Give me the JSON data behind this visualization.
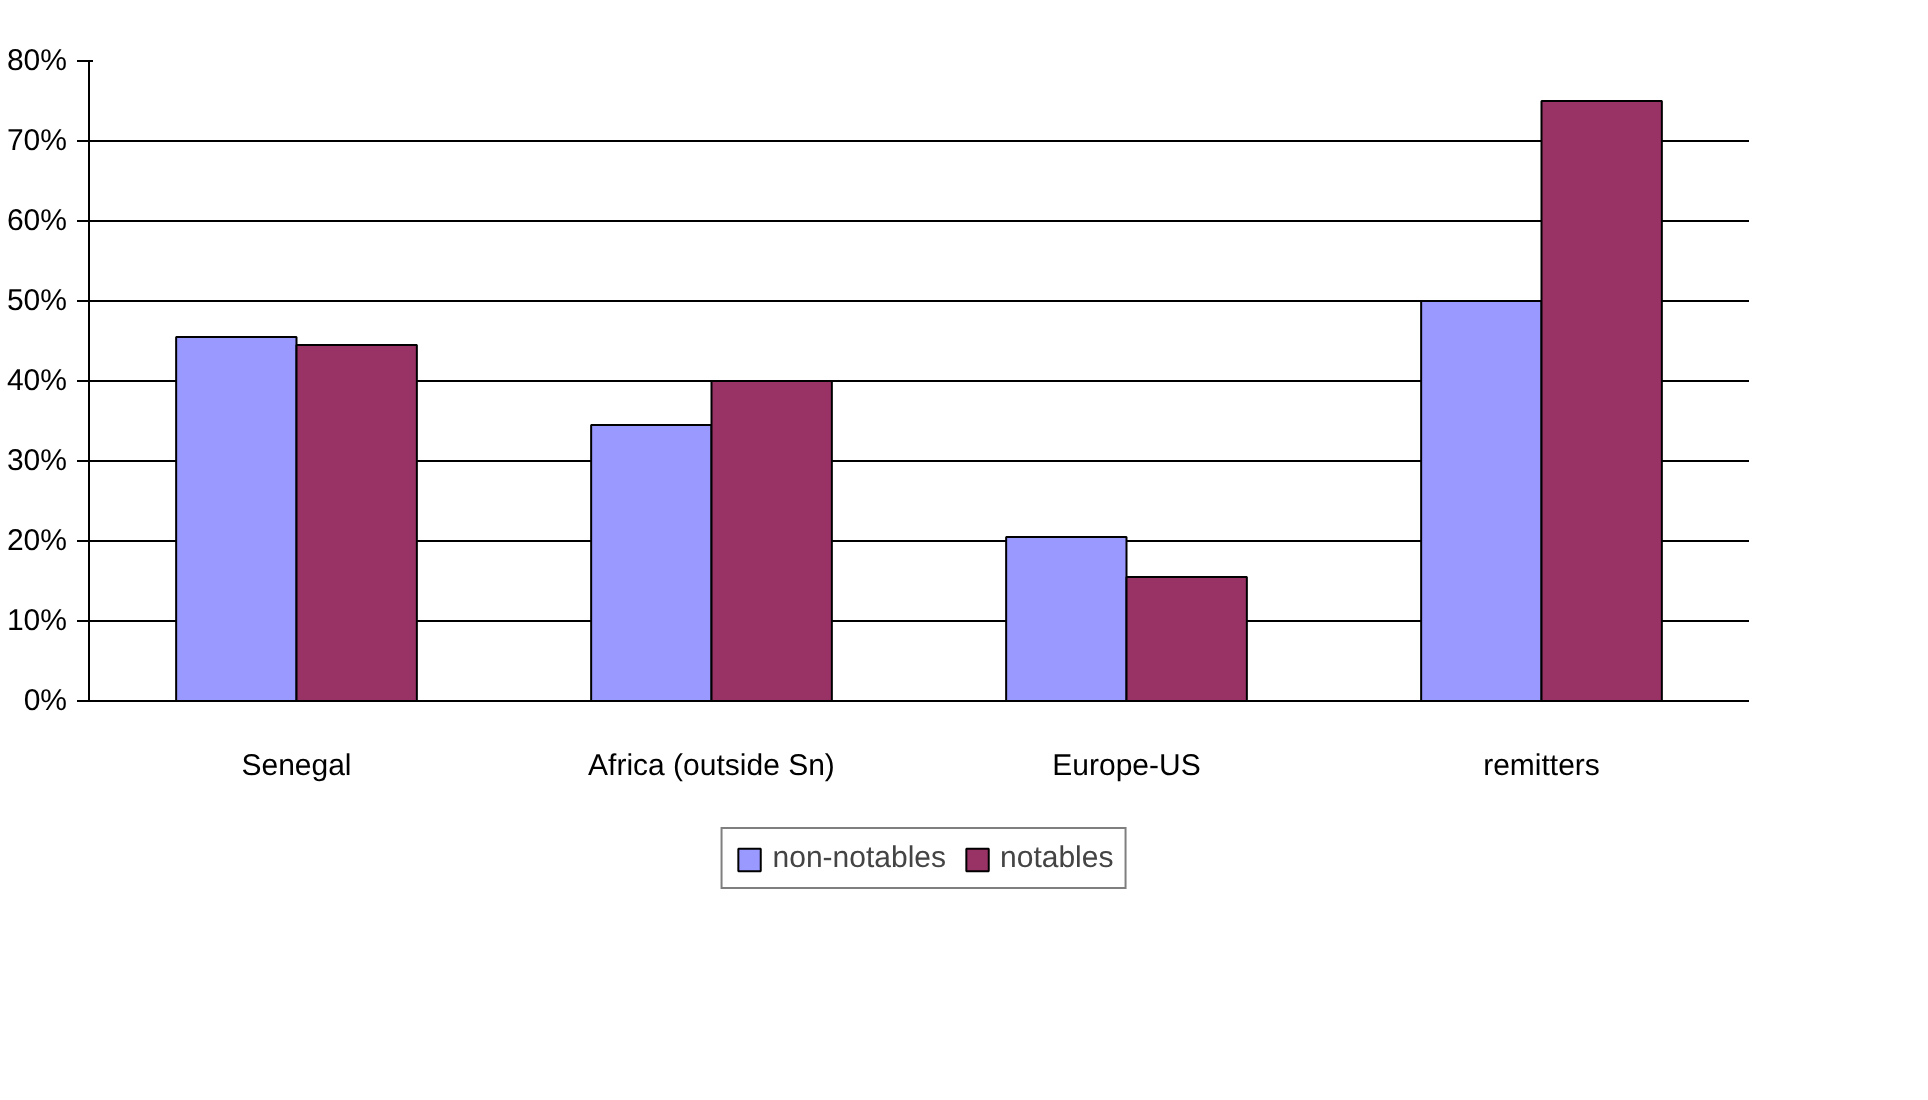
{
  "chart_data": {
    "type": "bar",
    "categories": [
      "Senegal",
      "Africa (outside Sn)",
      "Europe-US",
      "remitters"
    ],
    "series": [
      {
        "name": "non-notables",
        "color": "#9999ff",
        "values": [
          45.5,
          34.5,
          20.5,
          50
        ]
      },
      {
        "name": "notables",
        "color": "#993366",
        "values": [
          44.5,
          40,
          15.5,
          75
        ]
      }
    ],
    "ylim": [
      0,
      80
    ],
    "yticks": [
      {
        "value": 0,
        "label": "0%"
      },
      {
        "value": 10,
        "label": "10%"
      },
      {
        "value": 20,
        "label": "20%"
      },
      {
        "value": 30,
        "label": "30%"
      },
      {
        "value": 40,
        "label": "40%"
      },
      {
        "value": 50,
        "label": "50%"
      },
      {
        "value": 60,
        "label": "60%"
      },
      {
        "value": 70,
        "label": "70%"
      },
      {
        "value": 80,
        "label": "80%"
      }
    ],
    "grid": "y",
    "legend": "bottom"
  }
}
